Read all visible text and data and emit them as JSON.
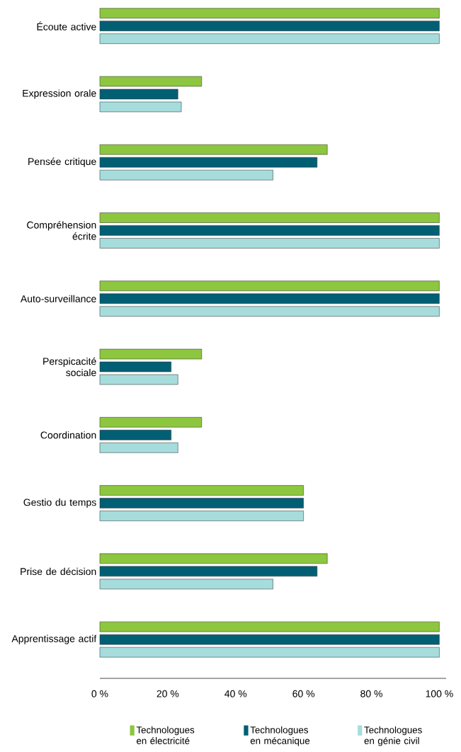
{
  "chart_data": {
    "type": "bar",
    "orientation": "horizontal",
    "categories": [
      "Écoute active",
      "Expression orale",
      "Pensée critique",
      "Compréhension écrite",
      "Auto-surveillance",
      "Perspicacité sociale",
      "Coordination",
      "Gestio du temps",
      "Prise de décision",
      "Apprentissage actif"
    ],
    "series": [
      {
        "name": "Technologues en électricité",
        "color": "#8dc63f",
        "values": [
          100,
          30,
          67,
          100,
          100,
          30,
          30,
          60,
          67,
          100
        ]
      },
      {
        "name": "Technologues en mécanique",
        "color": "#005f73",
        "values": [
          100,
          23,
          64,
          100,
          100,
          21,
          21,
          60,
          64,
          100
        ]
      },
      {
        "name": "Technologues en génie civil",
        "color": "#a6dcdc",
        "values": [
          100,
          24,
          51,
          100,
          100,
          23,
          23,
          60,
          51,
          100
        ]
      }
    ],
    "xlim": [
      0,
      102
    ],
    "xticks": [
      {
        "value": 0,
        "label": "0 %"
      },
      {
        "value": 20,
        "label": "20 %"
      },
      {
        "value": 40,
        "label": "40 %"
      },
      {
        "value": 60,
        "label": "60 %"
      },
      {
        "value": 80,
        "label": "80 %"
      },
      {
        "value": 100,
        "label": "100 %"
      }
    ],
    "grid": false,
    "legend": "bottom"
  }
}
